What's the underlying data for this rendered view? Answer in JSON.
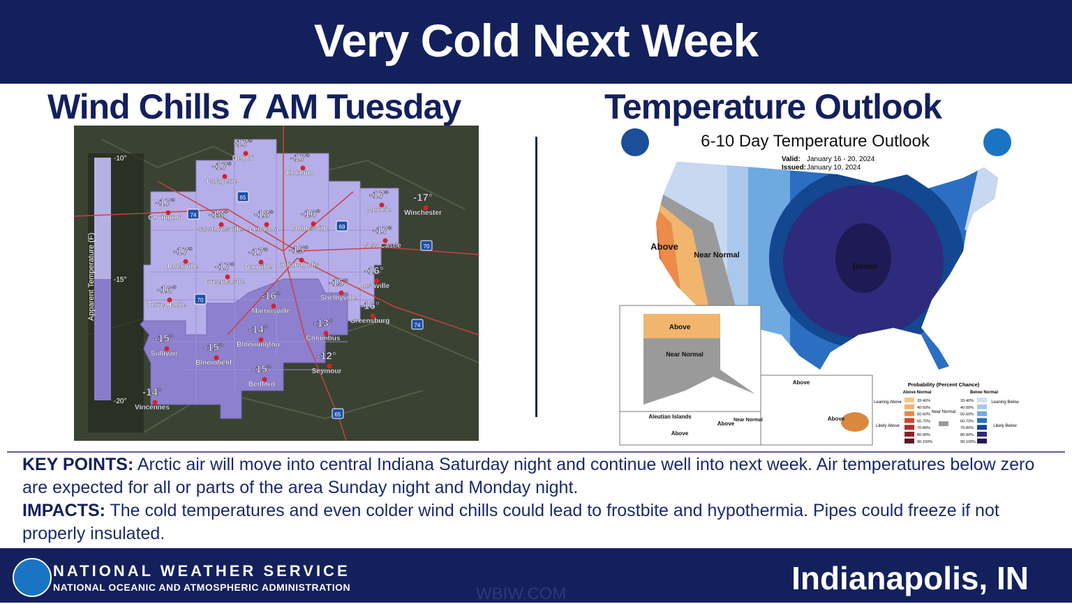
{
  "header": {
    "title": "Very Cold Next Week"
  },
  "left": {
    "title": "Wind Chills 7 AM Tuesday",
    "legend": {
      "label": "Apparent Temperature (F)",
      "ticks": [
        "-10°",
        "-15°",
        "-20°"
      ]
    },
    "cities": [
      {
        "temp": "-17°",
        "name": "Delphi"
      },
      {
        "temp": "-17°",
        "name": "Kokomo"
      },
      {
        "temp": "-17°",
        "name": "Lafayette"
      },
      {
        "temp": "-17°",
        "name": "Covington"
      },
      {
        "temp": "-18°",
        "name": "Crawfordsville"
      },
      {
        "temp": "-18°",
        "name": "Lebanon"
      },
      {
        "temp": "-16°",
        "name": "Noblesville"
      },
      {
        "temp": "-17°",
        "name": "Muncie"
      },
      {
        "temp": "-17°",
        "name": "Winchester"
      },
      {
        "temp": "-17°",
        "name": "New Castle"
      },
      {
        "temp": "-17°",
        "name": "Rockville"
      },
      {
        "temp": "-17°",
        "name": "Danville"
      },
      {
        "temp": "-15°",
        "name": "Indianapolis"
      },
      {
        "temp": "-17°",
        "name": "Greencastle"
      },
      {
        "temp": "-16°",
        "name": "Rushville"
      },
      {
        "temp": "-16°",
        "name": "Terre Haute"
      },
      {
        "temp": "-16°",
        "name": "Martinsville"
      },
      {
        "temp": "-15°",
        "name": "Shelbyville"
      },
      {
        "temp": "-16°",
        "name": "Greensburg"
      },
      {
        "temp": "-14°",
        "name": "Bloomington"
      },
      {
        "temp": "-13°",
        "name": "Columbus"
      },
      {
        "temp": "-15°",
        "name": "Sullivan"
      },
      {
        "temp": "-15°",
        "name": "Bloomfield"
      },
      {
        "temp": "-12°",
        "name": "Seymour"
      },
      {
        "temp": "-15°",
        "name": "Bedford"
      },
      {
        "temp": "-14°",
        "name": "Vincennes"
      }
    ],
    "highways": [
      "65",
      "74",
      "69",
      "70",
      "70",
      "74",
      "65"
    ]
  },
  "right": {
    "title": "Temperature Outlook",
    "map_title": "6-10 Day Temperature Outlook",
    "valid_label": "Valid:",
    "valid": "January 16 - 20, 2024",
    "issued_label": "Issued:",
    "issued": "January 10, 2024",
    "regions": [
      "Above",
      "Near Normal",
      "Below",
      "Above",
      "Near Normal",
      "Above",
      "Above",
      "Aleutian Islands",
      "Above",
      "Near Normal",
      "Above"
    ],
    "legend": {
      "title": "Probability (Percent Chance)",
      "above_header": "Above Normal",
      "below_header": "Below Normal",
      "near": "Near Normal",
      "leaning_above": "Leaning Above",
      "likely_above": "Likely Above",
      "leaning_below": "Leaning Below",
      "likely_below": "Likely Below",
      "ranges": [
        "33-40%",
        "40-50%",
        "50-60%",
        "60-70%",
        "70-80%",
        "80-90%",
        "90-100%"
      ]
    }
  },
  "key_points": {
    "label": "KEY POINTS:",
    "text": "Arctic air will move into central Indiana Saturday night and continue well into next week. Air temperatures below zero are expected for all or parts of the area Sunday night and Monday night."
  },
  "impacts": {
    "label": "IMPACTS:",
    "text": "The cold temperatures and even colder wind chills could lead to frostbite and hypothermia. Pipes could freeze if not properly insulated."
  },
  "footer": {
    "agency": "NATIONAL WEATHER SERVICE",
    "parent": "NATIONAL OCEANIC AND ATMOSPHERIC ADMINISTRATION",
    "office": "Indianapolis, IN",
    "watermark": "WBIW.COM"
  }
}
